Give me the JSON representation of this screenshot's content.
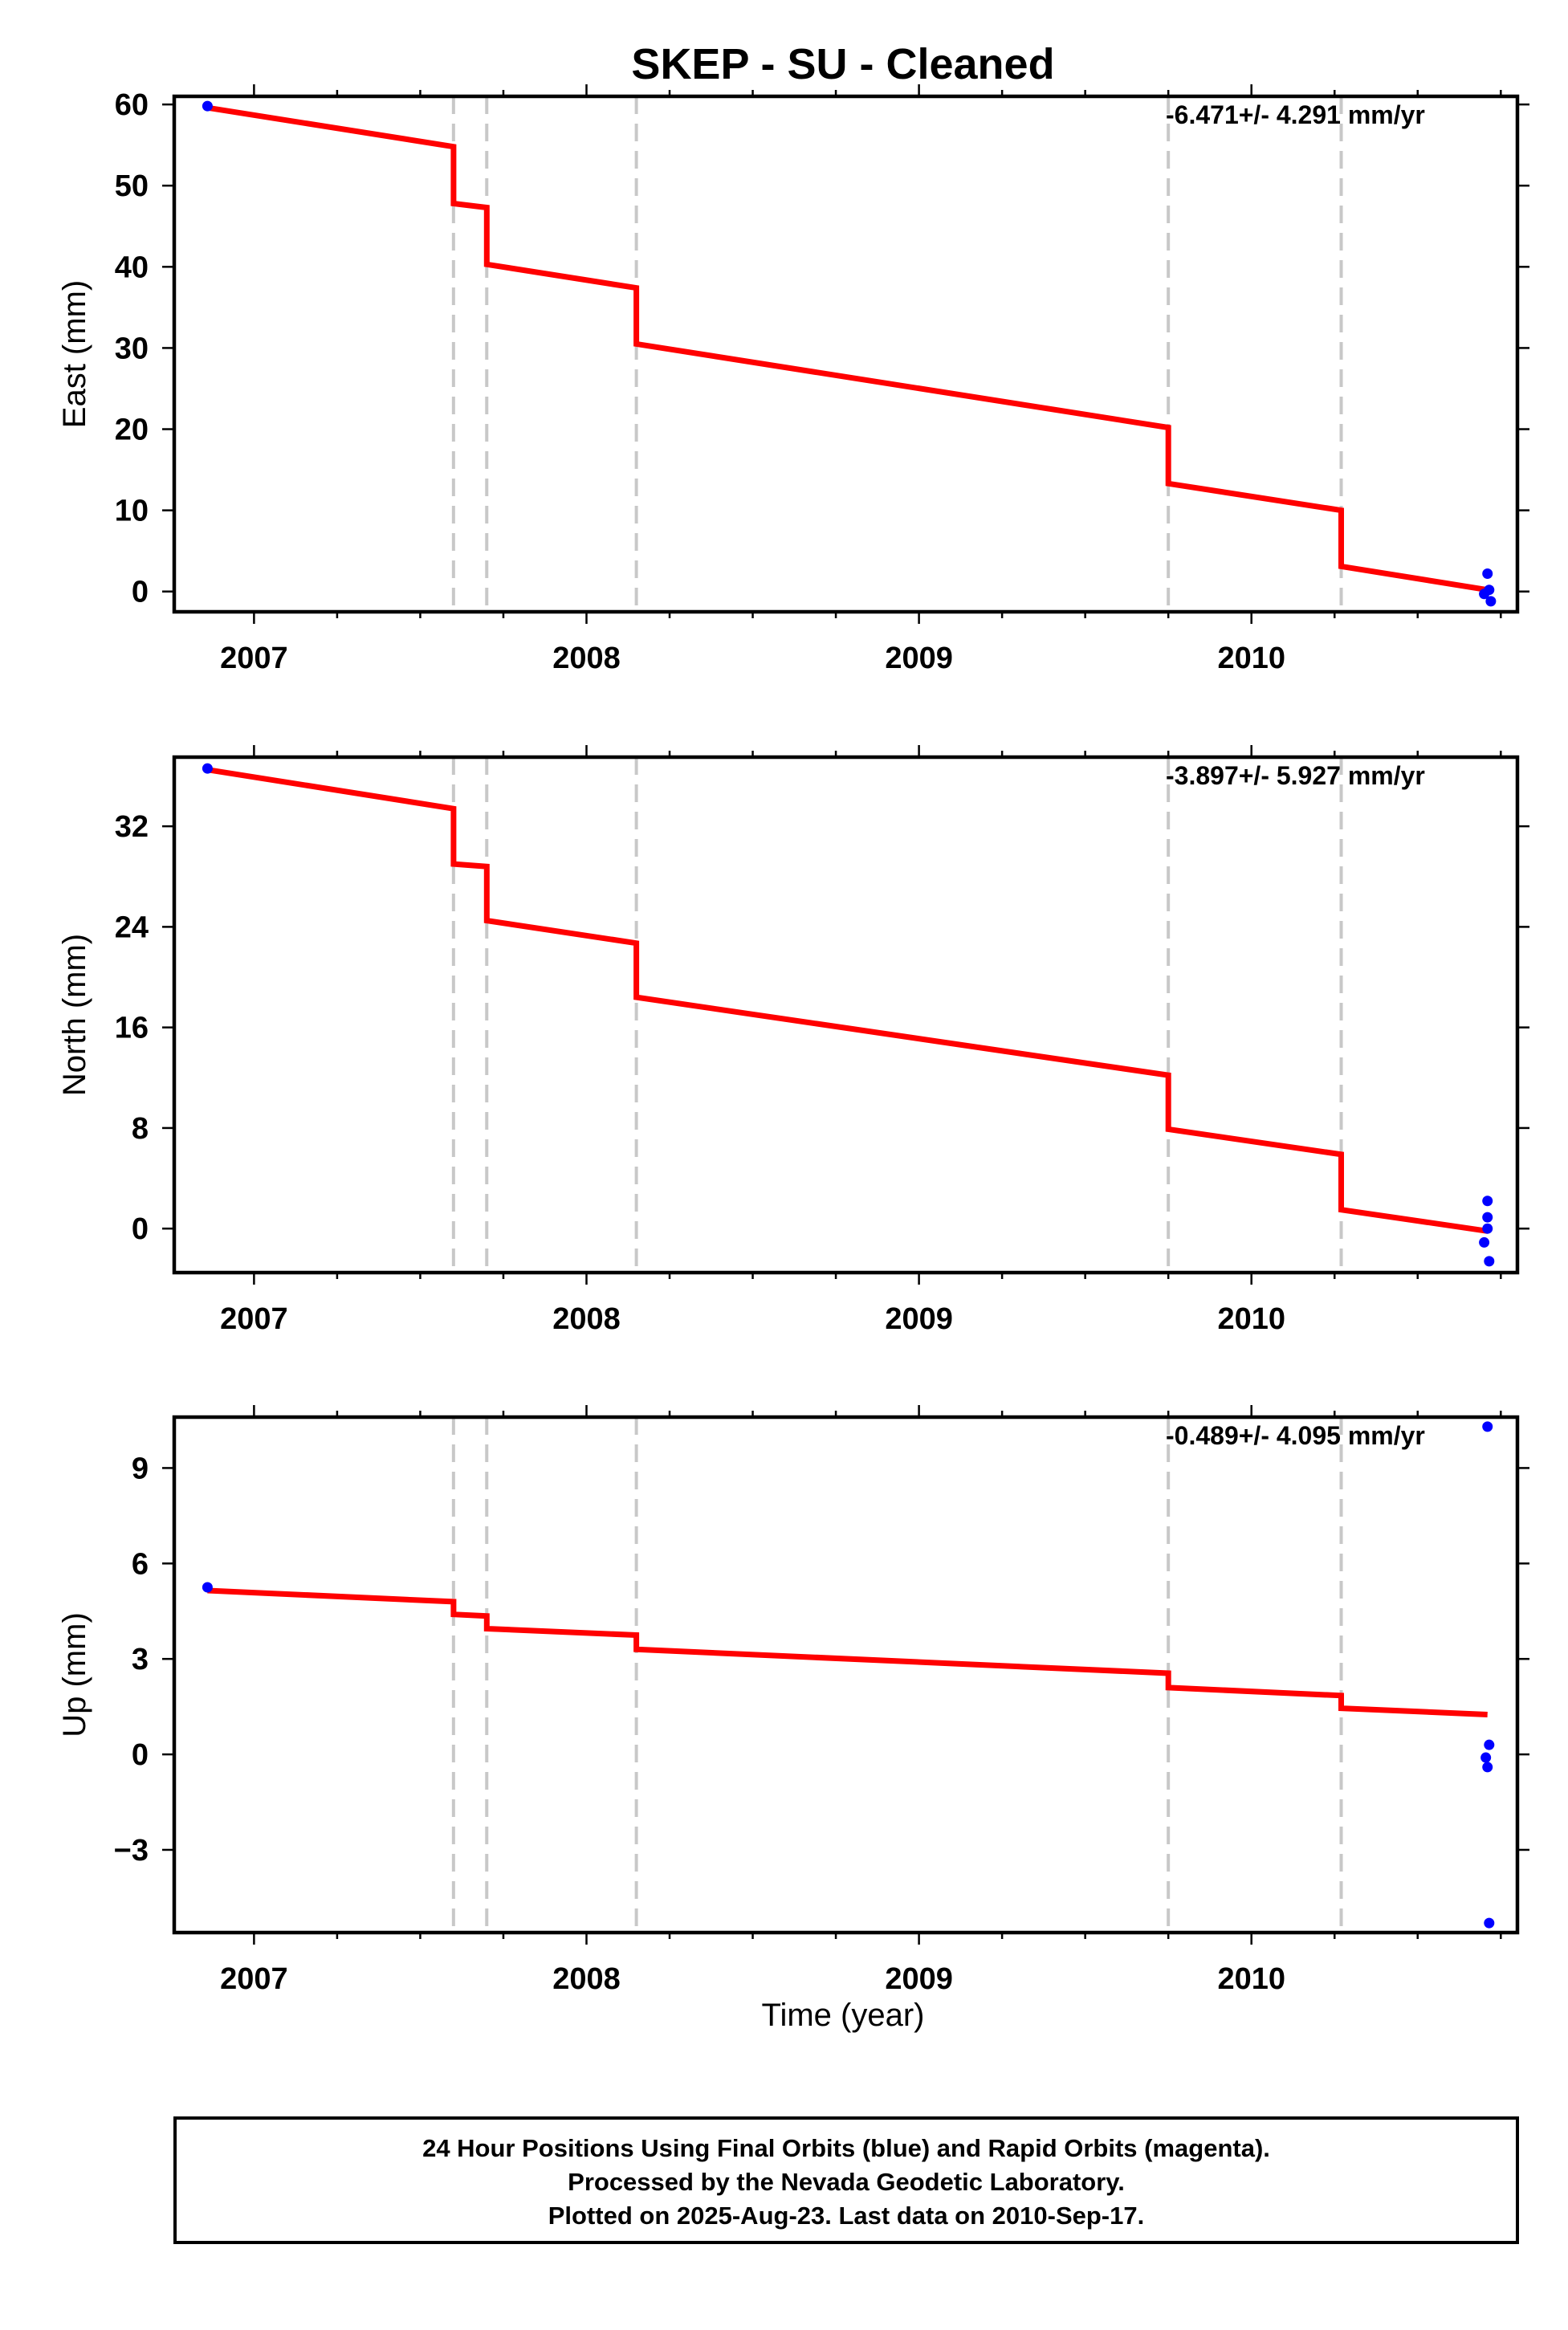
{
  "title": "SKEP  - SU - Cleaned",
  "xlabel": "Time (year)",
  "colors": {
    "fit": "#ff0000",
    "final_orbits": "#0000ff",
    "rapid_orbits": "#ff00ff",
    "break_lines": "#c8c8c8",
    "frame": "#000000"
  },
  "footer": {
    "line1": "24 Hour Positions Using Final Orbits (blue) and Rapid Orbits (magenta).",
    "line2": "Processed by the Nevada Geodetic Laboratory.",
    "line3": "Plotted on 2025-Aug-23. Last data on 2010-Sep-17."
  },
  "chart_data": [
    {
      "type": "scatter",
      "component": "East",
      "ylabel": "East (mm)",
      "rate": "-6.471+/- 4.291 mm/yr",
      "xlim": [
        2006.76,
        2010.8
      ],
      "ylim": [
        -2.5,
        61.0
      ],
      "xticks": [
        2007,
        2008,
        2009,
        2010
      ],
      "yticks": [
        0,
        10,
        20,
        30,
        40,
        50,
        60
      ],
      "breaks": [
        2007.6,
        2007.7,
        2008.15,
        2009.75,
        2010.27
      ],
      "fit": [
        {
          "x": 2006.86,
          "y": 59.6
        },
        {
          "x": 2007.6,
          "y": 54.8
        },
        {
          "x": 2007.6,
          "y": 47.8
        },
        {
          "x": 2007.7,
          "y": 47.3
        },
        {
          "x": 2007.7,
          "y": 40.3
        },
        {
          "x": 2008.15,
          "y": 37.4
        },
        {
          "x": 2008.15,
          "y": 30.5
        },
        {
          "x": 2009.75,
          "y": 20.2
        },
        {
          "x": 2009.75,
          "y": 13.3
        },
        {
          "x": 2010.27,
          "y": 10.0
        },
        {
          "x": 2010.27,
          "y": 3.1
        },
        {
          "x": 2010.71,
          "y": 0.2
        }
      ],
      "points": [
        {
          "x": 2006.86,
          "y": 59.8
        },
        {
          "x": 2010.7,
          "y": -0.3
        },
        {
          "x": 2010.71,
          "y": 2.2
        },
        {
          "x": 2010.715,
          "y": 0.2
        },
        {
          "x": 2010.72,
          "y": -1.2
        }
      ]
    },
    {
      "type": "scatter",
      "component": "North",
      "ylabel": "North (mm)",
      "rate": "-3.897+/- 5.927 mm/yr",
      "xlim": [
        2006.76,
        2010.8
      ],
      "ylim": [
        -3.5,
        37.5
      ],
      "xticks": [
        2007,
        2008,
        2009,
        2010
      ],
      "yticks": [
        0,
        8,
        16,
        24,
        32
      ],
      "breaks": [
        2007.6,
        2007.7,
        2008.15,
        2009.75,
        2010.27
      ],
      "fit": [
        {
          "x": 2006.86,
          "y": 36.5
        },
        {
          "x": 2007.6,
          "y": 33.4
        },
        {
          "x": 2007.6,
          "y": 29.0
        },
        {
          "x": 2007.7,
          "y": 28.8
        },
        {
          "x": 2007.7,
          "y": 24.5
        },
        {
          "x": 2008.15,
          "y": 22.7
        },
        {
          "x": 2008.15,
          "y": 18.4
        },
        {
          "x": 2009.75,
          "y": 12.2
        },
        {
          "x": 2009.75,
          "y": 7.9
        },
        {
          "x": 2010.27,
          "y": 5.9
        },
        {
          "x": 2010.27,
          "y": 1.5
        },
        {
          "x": 2010.71,
          "y": -0.2
        }
      ],
      "points": [
        {
          "x": 2006.86,
          "y": 36.6
        },
        {
          "x": 2010.71,
          "y": 2.2
        },
        {
          "x": 2010.71,
          "y": 0.9
        },
        {
          "x": 2010.71,
          "y": 0.0
        },
        {
          "x": 2010.7,
          "y": -1.1
        },
        {
          "x": 2010.715,
          "y": -2.6
        }
      ]
    },
    {
      "type": "scatter",
      "component": "Up",
      "ylabel": "Up (mm)",
      "rate": "-0.489+/- 4.095 mm/yr",
      "xlim": [
        2006.76,
        2010.8
      ],
      "ylim": [
        -5.6,
        10.6
      ],
      "xticks": [
        2007,
        2008,
        2009,
        2010
      ],
      "yticks": [
        -3,
        0,
        3,
        6,
        9
      ],
      "breaks": [
        2007.6,
        2007.7,
        2008.15,
        2009.75,
        2010.27
      ],
      "fit": [
        {
          "x": 2006.86,
          "y": 5.15
        },
        {
          "x": 2007.6,
          "y": 4.8
        },
        {
          "x": 2007.6,
          "y": 4.4
        },
        {
          "x": 2007.7,
          "y": 4.35
        },
        {
          "x": 2007.7,
          "y": 3.95
        },
        {
          "x": 2008.15,
          "y": 3.75
        },
        {
          "x": 2008.15,
          "y": 3.3
        },
        {
          "x": 2009.75,
          "y": 2.55
        },
        {
          "x": 2009.75,
          "y": 2.1
        },
        {
          "x": 2010.27,
          "y": 1.85
        },
        {
          "x": 2010.27,
          "y": 1.45
        },
        {
          "x": 2010.71,
          "y": 1.25
        }
      ],
      "points": [
        {
          "x": 2006.86,
          "y": 5.25
        },
        {
          "x": 2010.71,
          "y": 10.3
        },
        {
          "x": 2010.715,
          "y": 0.3
        },
        {
          "x": 2010.705,
          "y": -0.1
        },
        {
          "x": 2010.71,
          "y": -0.4
        },
        {
          "x": 2010.715,
          "y": -5.3
        }
      ]
    }
  ]
}
